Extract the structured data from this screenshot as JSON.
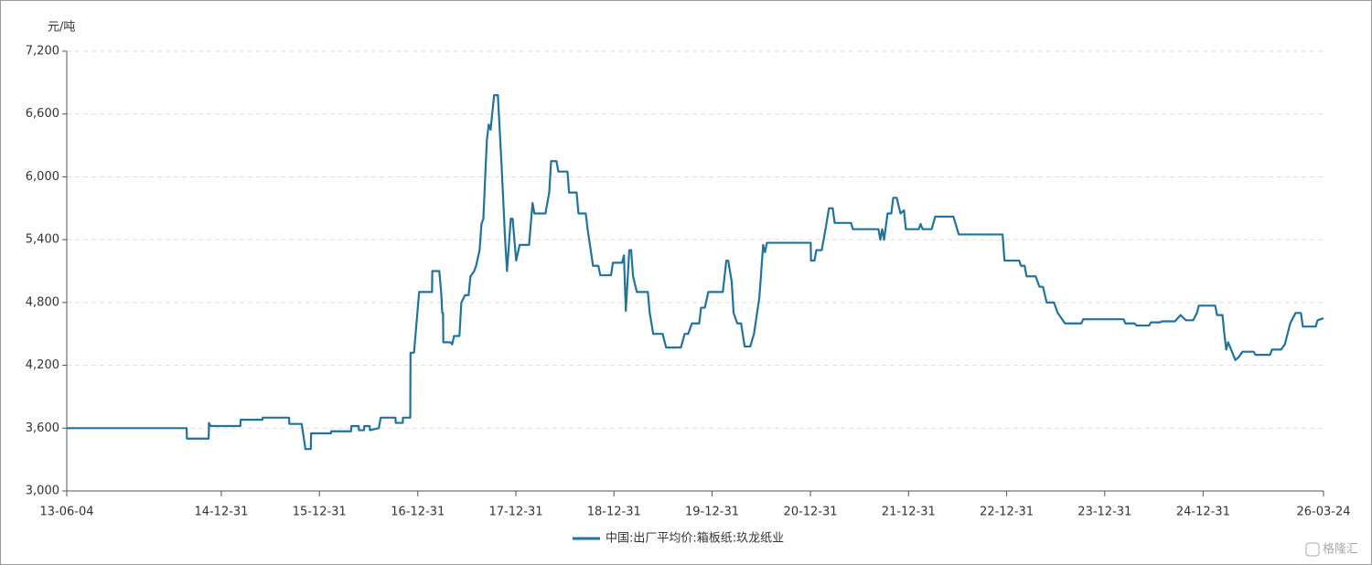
{
  "chart_data": {
    "type": "line",
    "y_label": "元/吨",
    "watermark": "格隆汇",
    "xlim": [
      "13-06-04",
      "26-03-24"
    ],
    "xticks": [
      "13-06-04",
      "14-12-31",
      "15-12-31",
      "16-12-31",
      "17-12-31",
      "18-12-31",
      "19-12-31",
      "20-12-31",
      "21-12-31",
      "22-12-31",
      "23-12-31",
      "24-12-31",
      "26-03-24"
    ],
    "ylim": [
      3000,
      7200
    ],
    "yticks": [
      {
        "value": 3000,
        "label": "3,000"
      },
      {
        "value": 3600,
        "label": "3,600"
      },
      {
        "value": 4200,
        "label": "4,200"
      },
      {
        "value": 4800,
        "label": "4,800"
      },
      {
        "value": 5400,
        "label": "5,400"
      },
      {
        "value": 6000,
        "label": "6,000"
      },
      {
        "value": 6600,
        "label": "6,600"
      },
      {
        "value": 7200,
        "label": "7,200"
      }
    ],
    "grid": true,
    "legend": "bottom",
    "x": [
      "13-06-04",
      "14-08-24",
      "14-08-25",
      "14-11-14",
      "14-11-15",
      "14-11-21",
      "15-03-12",
      "15-03-13",
      "15-06-02",
      "15-06-03",
      "15-09-09",
      "15-09-10",
      "15-10-26",
      "15-11-09",
      "15-11-29",
      "15-11-30",
      "16-02-12",
      "16-02-13",
      "16-04-27",
      "16-04-28",
      "16-05-25",
      "16-05-26",
      "16-06-14",
      "16-06-15",
      "16-07-05",
      "16-07-06",
      "16-08-08",
      "16-08-15",
      "16-10-09",
      "16-10-10",
      "16-11-05",
      "16-11-06",
      "16-12-03",
      "16-12-04",
      "16-12-17",
      "17-01-05",
      "17-02-22",
      "17-02-23",
      "17-03-21",
      "17-03-28",
      "17-04-01",
      "17-04-04",
      "17-04-05",
      "17-05-01",
      "17-05-08",
      "17-05-15",
      "17-06-04",
      "17-06-11",
      "17-06-25",
      "17-07-08",
      "17-07-15",
      "17-07-29",
      "17-08-05",
      "17-08-18",
      "17-08-25",
      "17-09-01",
      "17-09-14",
      "17-09-21",
      "17-09-28",
      "17-10-11",
      "17-10-25",
      "17-11-08",
      "17-11-21",
      "17-11-28",
      "17-12-12",
      "17-12-19",
      "18-01-01",
      "18-01-14",
      "18-02-18",
      "18-03-03",
      "18-03-10",
      "18-04-20",
      "18-05-04",
      "18-05-11",
      "18-05-31",
      "18-06-07",
      "18-07-11",
      "18-07-17",
      "18-08-14",
      "18-08-21",
      "18-09-17",
      "18-09-24",
      "18-10-14",
      "18-11-03",
      "18-11-10",
      "18-12-20",
      "18-12-27",
      "19-01-30",
      "19-02-06",
      "19-02-13",
      "19-02-26",
      "19-03-05",
      "19-03-12",
      "19-03-26",
      "19-05-06",
      "19-05-13",
      "19-05-26",
      "19-06-30",
      "19-07-13",
      "19-09-06",
      "19-09-20",
      "19-10-03",
      "19-10-17",
      "19-11-13",
      "19-11-20",
      "19-12-04",
      "19-12-17",
      "20-02-09",
      "20-02-22",
      "20-02-29",
      "20-03-13",
      "20-03-20",
      "20-04-03",
      "20-04-17",
      "20-04-30",
      "20-05-21",
      "20-06-04",
      "20-06-24",
      "20-07-08",
      "20-07-15",
      "20-07-22",
      "21-01-01",
      "21-01-02",
      "21-01-15",
      "21-01-22",
      "21-02-11",
      "21-02-25",
      "21-03-10",
      "21-03-24",
      "21-03-31",
      "21-05-31",
      "21-06-07",
      "21-09-10",
      "21-09-17",
      "21-09-24",
      "21-10-01",
      "21-10-14",
      "21-10-28",
      "21-11-04",
      "21-11-17",
      "21-12-01",
      "21-12-14",
      "21-12-21",
      "22-02-07",
      "22-02-14",
      "22-02-21",
      "22-03-27",
      "22-04-09",
      "22-06-16",
      "22-06-30",
      "22-07-06",
      "22-12-16",
      "22-12-23",
      "23-02-16",
      "23-02-22",
      "23-03-08",
      "23-03-15",
      "23-04-18",
      "23-05-02",
      "23-05-15",
      "23-05-29",
      "23-06-25",
      "23-07-09",
      "23-08-05",
      "23-10-05",
      "23-10-12",
      "24-03-10",
      "24-03-17",
      "24-04-20",
      "24-04-27",
      "24-06-13",
      "24-06-20",
      "24-07-24",
      "24-07-31",
      "24-09-17",
      "24-10-08",
      "24-10-28",
      "24-11-24",
      "24-12-08",
      "24-12-15",
      "25-02-14",
      "25-02-21",
      "25-03-13",
      "25-03-20",
      "25-03-27",
      "25-04-03",
      "25-04-30",
      "25-05-13",
      "25-05-27",
      "25-07-07",
      "25-07-14",
      "25-09-06",
      "25-09-13",
      "25-10-17",
      "25-10-31",
      "25-11-20",
      "25-12-10",
      "25-12-30",
      "26-01-06",
      "26-02-23",
      "26-03-02",
      "26-03-24"
    ],
    "series": [
      {
        "name": "中国:出厂平均价:箱板纸:玖龙纸业",
        "color": "#1f739d",
        "values": [
          3600,
          3600,
          3500,
          3500,
          3650,
          3620,
          3620,
          3680,
          3680,
          3700,
          3700,
          3640,
          3640,
          3400,
          3400,
          3550,
          3550,
          3570,
          3570,
          3620,
          3620,
          3580,
          3580,
          3620,
          3620,
          3580,
          3600,
          3700,
          3700,
          3650,
          3650,
          3700,
          3700,
          4320,
          4320,
          4900,
          4900,
          5100,
          5100,
          4900,
          4700,
          4700,
          4420,
          4420,
          4400,
          4480,
          4480,
          4800,
          4870,
          4870,
          5050,
          5100,
          5150,
          5300,
          5550,
          5600,
          6350,
          6500,
          6450,
          6780,
          6780,
          6100,
          5400,
          5100,
          5600,
          5600,
          5200,
          5350,
          5350,
          5750,
          5650,
          5650,
          5850,
          6150,
          6150,
          6050,
          6050,
          5850,
          5850,
          5650,
          5650,
          5500,
          5150,
          5150,
          5060,
          5060,
          5180,
          5180,
          5250,
          4720,
          5300,
          5300,
          5050,
          4900,
          4900,
          4700,
          4500,
          4500,
          4370,
          4370,
          4500,
          4500,
          4600,
          4600,
          4750,
          4750,
          4900,
          4900,
          5200,
          5200,
          5000,
          4700,
          4600,
          4600,
          4380,
          4380,
          4500,
          4850,
          5350,
          5280,
          5370,
          5370,
          5200,
          5200,
          5300,
          5300,
          5500,
          5700,
          5700,
          5560,
          5560,
          5500,
          5500,
          5400,
          5500,
          5400,
          5650,
          5650,
          5800,
          5800,
          5650,
          5680,
          5500,
          5500,
          5550,
          5500,
          5500,
          5620,
          5620,
          5500,
          5450,
          5450,
          5200,
          5200,
          5150,
          5150,
          5050,
          5050,
          4950,
          4950,
          4800,
          4800,
          4700,
          4600,
          4600,
          4640,
          4640,
          4600,
          4600,
          4580,
          4580,
          4610,
          4610,
          4620,
          4620,
          4680,
          4630,
          4630,
          4700,
          4770,
          4770,
          4680,
          4680,
          4500,
          4350,
          4420,
          4250,
          4280,
          4330,
          4330,
          4300,
          4300,
          4350,
          4350,
          4400,
          4600,
          4700,
          4700,
          4570,
          4570,
          4630,
          4650
        ]
      }
    ]
  }
}
